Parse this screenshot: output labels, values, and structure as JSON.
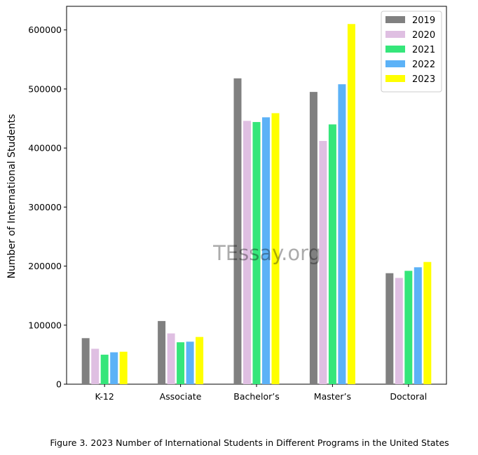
{
  "caption": "Figure 3. 2023 Number of International Students in Different Programs in the United States",
  "watermark": "TEssay.org",
  "chart_data": {
    "type": "bar",
    "title": "",
    "xlabel": "",
    "ylabel": "Number of International Students",
    "categories": [
      "K-12",
      "Associate",
      "Bachelor’s",
      "Master’s",
      "Doctoral"
    ],
    "ylim": [
      0,
      640000
    ],
    "yticks": [
      0,
      100000,
      200000,
      300000,
      400000,
      500000,
      600000
    ],
    "legend_position": "top-right",
    "grid": false,
    "series": [
      {
        "name": "2019",
        "color": "#808080",
        "values": [
          78000,
          107000,
          518000,
          495000,
          188000
        ]
      },
      {
        "name": "2020",
        "color": "#dfbfe2",
        "values": [
          60000,
          86000,
          446000,
          412000,
          180000
        ]
      },
      {
        "name": "2021",
        "color": "#35e67a",
        "values": [
          50000,
          71000,
          444000,
          440000,
          192000
        ]
      },
      {
        "name": "2022",
        "color": "#5cb2f7",
        "values": [
          54000,
          72000,
          452000,
          508000,
          198000
        ]
      },
      {
        "name": "2023",
        "color": "#ffff00",
        "values": [
          55000,
          80000,
          459000,
          610000,
          207000
        ]
      }
    ]
  }
}
